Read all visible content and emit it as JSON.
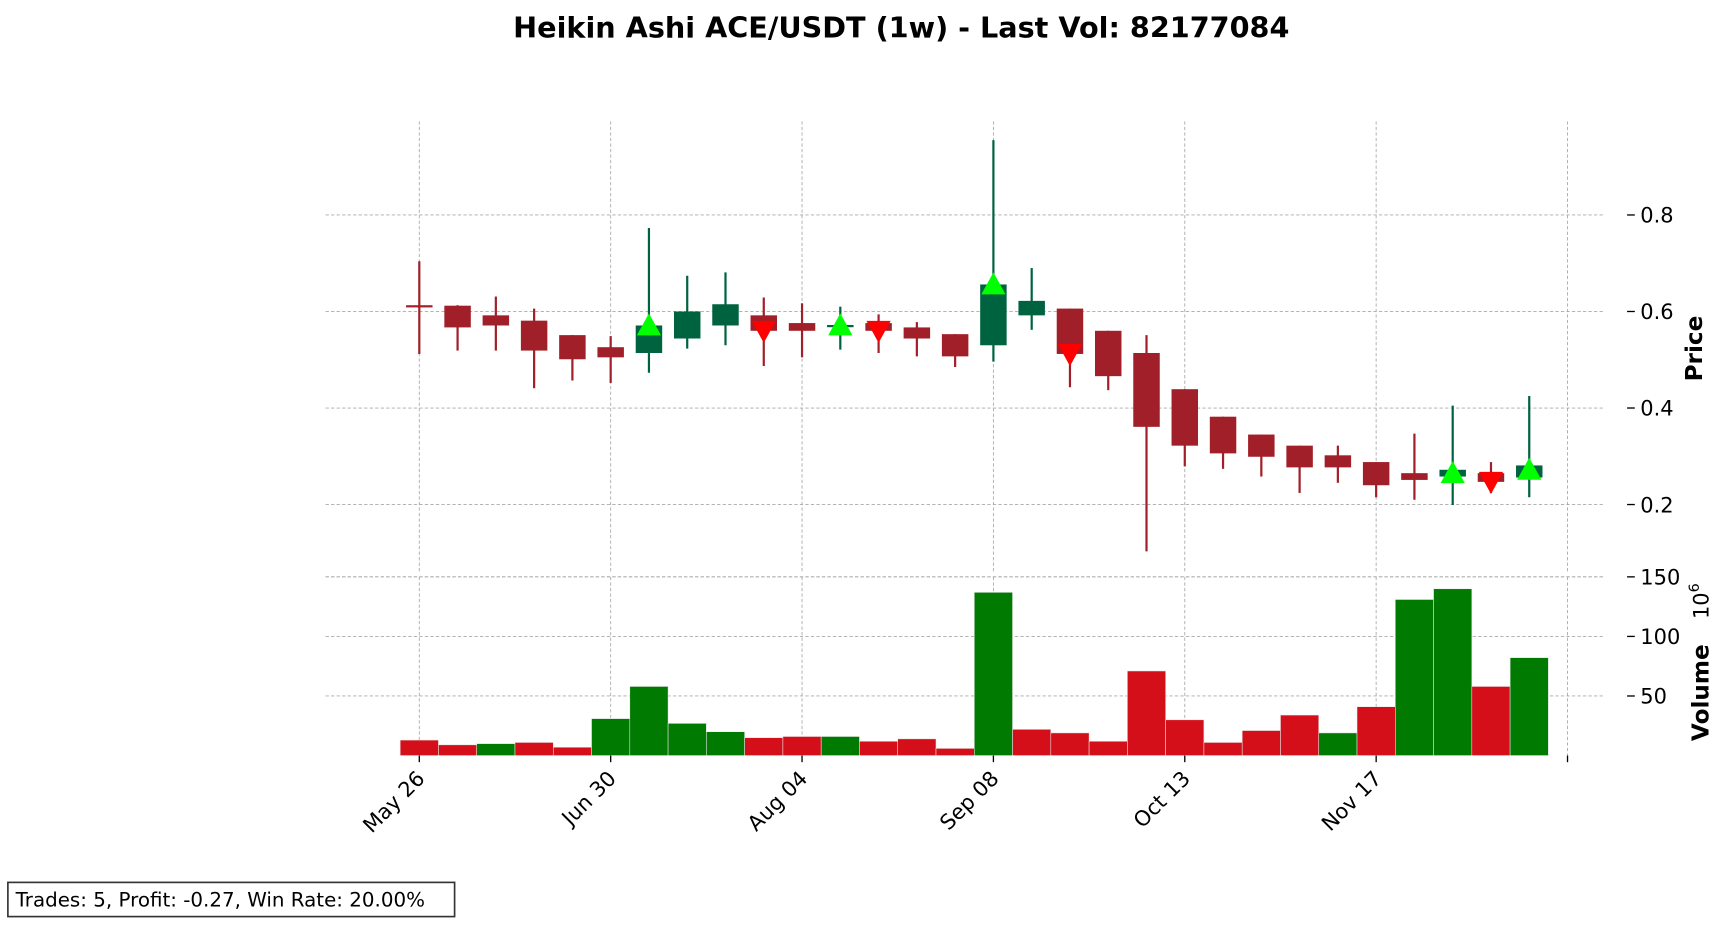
{
  "chart_data": {
    "type": "candlestick",
    "title": "Heikin Ashi ACE/USDT (1w) - Last Vol: 82177084",
    "price_ylabel": "Price",
    "volume_ylabel": "Volume",
    "volume_exponent": "10",
    "volume_exponent_power": "6",
    "price_ylim": [
      0.057,
      0.994
    ],
    "price_ticks": [
      "0.2",
      "0.4",
      "0.6",
      "0.8"
    ],
    "volume_ylim": [
      0,
      150
    ],
    "volume_ticks": [
      "50",
      "100",
      "150"
    ],
    "grid": true,
    "x_tick_labels": [
      {
        "index": 0,
        "label": "May 26"
      },
      {
        "index": 5,
        "label": "Jun 30"
      },
      {
        "index": 10,
        "label": "Aug 04"
      },
      {
        "index": 15,
        "label": "Sep 08"
      },
      {
        "index": 20,
        "label": "Oct 13"
      },
      {
        "index": 25,
        "label": "Nov 17"
      },
      {
        "index": 30,
        "label": ""
      }
    ],
    "colors": {
      "up": "#006340",
      "down": "#a11f28",
      "vol_up": "#007a00",
      "vol_down": "#d40f1a",
      "buy": "#00ff00",
      "sell": "#ff0000",
      "grid": "#aaaaaa"
    },
    "candles": [
      {
        "o": 0.613,
        "h": 0.704,
        "l": 0.512,
        "c": 0.611
      },
      {
        "o": 0.612,
        "h": 0.613,
        "l": 0.519,
        "c": 0.567
      },
      {
        "o": 0.592,
        "h": 0.631,
        "l": 0.519,
        "c": 0.571
      },
      {
        "o": 0.581,
        "h": 0.606,
        "l": 0.441,
        "c": 0.519
      },
      {
        "o": 0.551,
        "h": 0.551,
        "l": 0.457,
        "c": 0.501
      },
      {
        "o": 0.526,
        "h": 0.549,
        "l": 0.452,
        "c": 0.505
      },
      {
        "o": 0.514,
        "h": 0.773,
        "l": 0.473,
        "c": 0.571
      },
      {
        "o": 0.544,
        "h": 0.674,
        "l": 0.523,
        "c": 0.6
      },
      {
        "o": 0.571,
        "h": 0.681,
        "l": 0.53,
        "c": 0.615
      },
      {
        "o": 0.592,
        "h": 0.629,
        "l": 0.487,
        "c": 0.56
      },
      {
        "o": 0.576,
        "h": 0.617,
        "l": 0.505,
        "c": 0.56
      },
      {
        "o": 0.568,
        "h": 0.61,
        "l": 0.521,
        "c": 0.572
      },
      {
        "o": 0.576,
        "h": 0.594,
        "l": 0.514,
        "c": 0.56
      },
      {
        "o": 0.567,
        "h": 0.578,
        "l": 0.507,
        "c": 0.544
      },
      {
        "o": 0.553,
        "h": 0.553,
        "l": 0.485,
        "c": 0.507
      },
      {
        "o": 0.53,
        "h": 0.955,
        "l": 0.496,
        "c": 0.656
      },
      {
        "o": 0.592,
        "h": 0.69,
        "l": 0.562,
        "c": 0.622
      },
      {
        "o": 0.606,
        "h": 0.606,
        "l": 0.443,
        "c": 0.512
      },
      {
        "o": 0.56,
        "h": 0.56,
        "l": 0.437,
        "c": 0.466
      },
      {
        "o": 0.514,
        "h": 0.551,
        "l": 0.103,
        "c": 0.361
      },
      {
        "o": 0.439,
        "h": 0.439,
        "l": 0.279,
        "c": 0.322
      },
      {
        "o": 0.382,
        "h": 0.382,
        "l": 0.274,
        "c": 0.306
      },
      {
        "o": 0.345,
        "h": 0.345,
        "l": 0.258,
        "c": 0.299
      },
      {
        "o": 0.322,
        "h": 0.322,
        "l": 0.224,
        "c": 0.277
      },
      {
        "o": 0.302,
        "h": 0.322,
        "l": 0.245,
        "c": 0.277
      },
      {
        "o": 0.288,
        "h": 0.288,
        "l": 0.215,
        "c": 0.24
      },
      {
        "o": 0.265,
        "h": 0.347,
        "l": 0.21,
        "c": 0.251
      },
      {
        "o": 0.258,
        "h": 0.405,
        "l": 0.199,
        "c": 0.272
      },
      {
        "o": 0.265,
        "h": 0.288,
        "l": 0.224,
        "c": 0.247
      },
      {
        "o": 0.256,
        "h": 0.425,
        "l": 0.215,
        "c": 0.281
      }
    ],
    "volume_millions": [
      13,
      9,
      10,
      11,
      7,
      31,
      58,
      27,
      20,
      15,
      16,
      16,
      12,
      14,
      6,
      137,
      22,
      19,
      12,
      71,
      30,
      11,
      21,
      34,
      19,
      41,
      131,
      140,
      58,
      82.177084
    ],
    "volume_up": [
      false,
      false,
      true,
      false,
      false,
      true,
      true,
      true,
      true,
      false,
      false,
      true,
      false,
      false,
      false,
      true,
      false,
      false,
      false,
      false,
      false,
      false,
      false,
      false,
      true,
      false,
      true,
      true,
      false,
      true
    ],
    "signals": [
      {
        "index": 6,
        "type": "buy",
        "price": 0.571
      },
      {
        "index": 9,
        "type": "sell",
        "price": 0.56
      },
      {
        "index": 11,
        "type": "buy",
        "price": 0.571
      },
      {
        "index": 12,
        "type": "sell",
        "price": 0.56
      },
      {
        "index": 15,
        "type": "buy",
        "price": 0.656
      },
      {
        "index": 17,
        "type": "sell",
        "price": 0.512
      },
      {
        "index": 27,
        "type": "buy",
        "price": 0.265
      },
      {
        "index": 28,
        "type": "sell",
        "price": 0.247
      },
      {
        "index": 29,
        "type": "buy",
        "price": 0.272
      }
    ]
  },
  "footer": {
    "stats": "Trades: 5, Profit: -0.27, Win Rate: 20.00%"
  }
}
